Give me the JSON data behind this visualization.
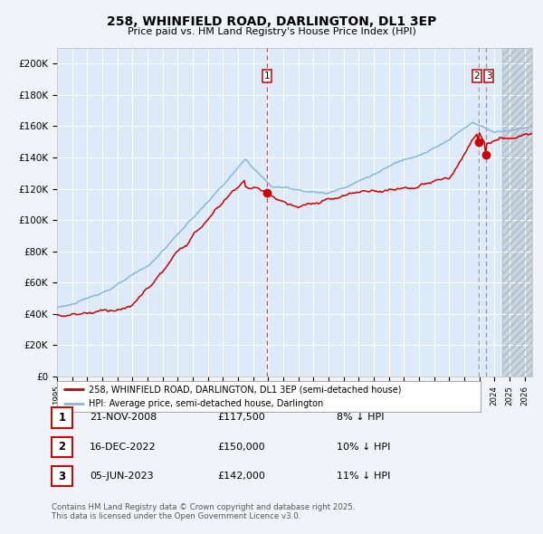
{
  "title": "258, WHINFIELD ROAD, DARLINGTON, DL1 3EP",
  "subtitle": "Price paid vs. HM Land Registry's House Price Index (HPI)",
  "fig_bg_color": "#f0f4f8",
  "plot_bg_color": "#ddeaf7",
  "future_bg_color": "#c8d4de",
  "grid_color": "#ffffff",
  "red_line_color": "#cc0000",
  "blue_line_color": "#88b8d8",
  "sale_marker_color": "#cc0000",
  "legend1": "258, WHINFIELD ROAD, DARLINGTON, DL1 3EP (semi-detached house)",
  "legend2": "HPI: Average price, semi-detached house, Darlington",
  "sale1_date": "21-NOV-2008",
  "sale1_price": "£117,500",
  "sale1_hpi": "8% ↓ HPI",
  "sale2_date": "16-DEC-2022",
  "sale2_price": "£150,000",
  "sale2_hpi": "10% ↓ HPI",
  "sale3_date": "05-JUN-2023",
  "sale3_price": "£142,000",
  "sale3_hpi": "11% ↓ HPI",
  "footer": "Contains HM Land Registry data © Crown copyright and database right 2025.\nThis data is licensed under the Open Government Licence v3.0.",
  "xmin": 1995,
  "xmax": 2026.5,
  "ymin": 0,
  "ymax": 210000,
  "yticks": [
    0,
    20000,
    40000,
    60000,
    80000,
    100000,
    120000,
    140000,
    160000,
    180000,
    200000
  ],
  "sale1_t": 2008.917,
  "sale2_t": 2022.958,
  "sale3_t": 2023.417,
  "sale1_v": 117500,
  "sale2_v": 150000,
  "sale3_v": 142000,
  "future_start": 2024.5
}
